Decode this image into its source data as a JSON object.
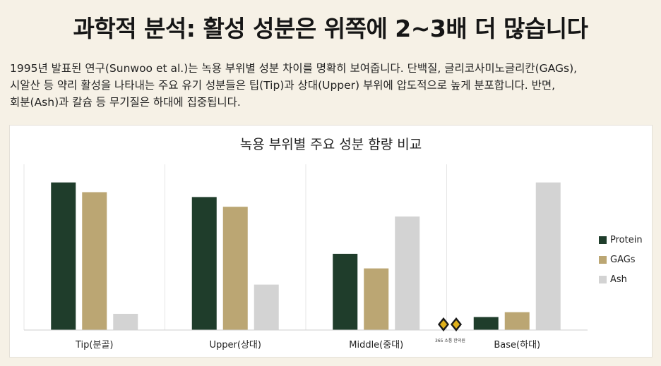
{
  "headline": "과학적 분석: 활성 성분은 위쪽에 2~3배 더 많습니다",
  "body_lines": [
    "1995년 발표된 연구(Sunwoo et al.)는 녹용 부위별 성분 차이를 명확히 보여줍니다. 단백질, 글리코사미노글리칸(GAGs),",
    "시알산 등 약리 활성을 나타내는 주요 유기 성분들은 팁(Tip)과 상대(Upper) 부위에 압도적으로 높게 분포합니다. 반면,",
    "회분(Ash)과 칼슘 등 무기질은 하대에 집중됩니다."
  ],
  "watermark": {
    "text": "365 소통 한의원",
    "icon": "deer-antler-logo-icon"
  },
  "chart_data": {
    "type": "bar",
    "title": "녹용 부위별 주요 성분 함량 비교",
    "categories": [
      "Tip(분골)",
      "Upper(상대)",
      "Middle(중대)",
      "Base(하대)"
    ],
    "series": [
      {
        "name": "Protein",
        "color": "#1f3d2b",
        "values": [
          91,
          82,
          47,
          8
        ]
      },
      {
        "name": "GAGs",
        "color": "#bba673",
        "values": [
          85,
          76,
          38,
          11
        ]
      },
      {
        "name": "Ash",
        "color": "#d3d3d3",
        "values": [
          10,
          28,
          70,
          91
        ]
      }
    ],
    "ylim": [
      0,
      100
    ],
    "grid": "vertical category separators",
    "legend_position": "right",
    "xlabel": "",
    "ylabel": ""
  }
}
